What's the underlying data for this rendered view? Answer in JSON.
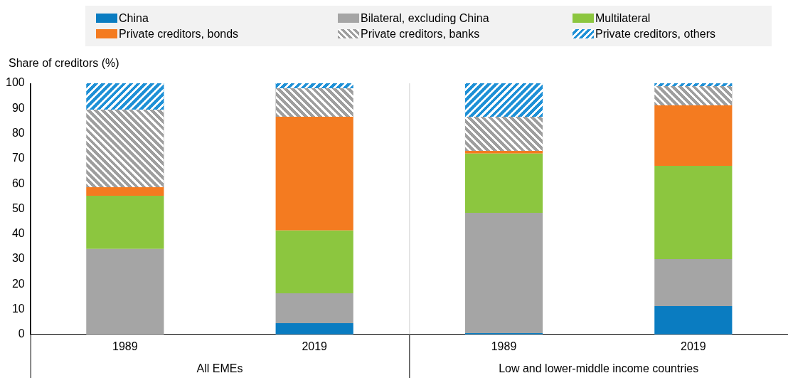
{
  "chart_data": {
    "type": "bar",
    "stacked": true,
    "ylabel": "Share of creditors (%)",
    "categories": [
      "1989",
      "2019",
      "1989",
      "2019"
    ],
    "annotations": [
      "All EMEs",
      "Low and lower-middle income countries"
    ],
    "ylim": [
      0,
      100
    ],
    "yticks": [
      0,
      10,
      20,
      30,
      40,
      50,
      60,
      70,
      80,
      90,
      100
    ],
    "grid": false,
    "legend": "top",
    "series": [
      {
        "name": "China",
        "color": "#0a7cc1",
        "values": [
          0,
          4.5,
          0.5,
          11.3
        ]
      },
      {
        "name": "Bilateral, excluding China",
        "color": "#a5a5a5",
        "values": [
          34,
          11.9,
          47.9,
          18.7
        ]
      },
      {
        "name": "Multilateral",
        "color": "#8cc63f",
        "values": [
          21.2,
          25,
          23.6,
          37.1
        ]
      },
      {
        "name": "Private creditors, bonds",
        "color": "#f47b20",
        "values": [
          3.4,
          45.3,
          1.1,
          24.1
        ]
      },
      {
        "name": "Private creditors, banks",
        "color": "#9e9e9e",
        "values": [
          30.9,
          11.3,
          13.6,
          7.7
        ]
      },
      {
        "name": "Private creditors, others",
        "color": "#1e90d6",
        "values": [
          10.5,
          2,
          13.3,
          1.1
        ]
      }
    ]
  }
}
